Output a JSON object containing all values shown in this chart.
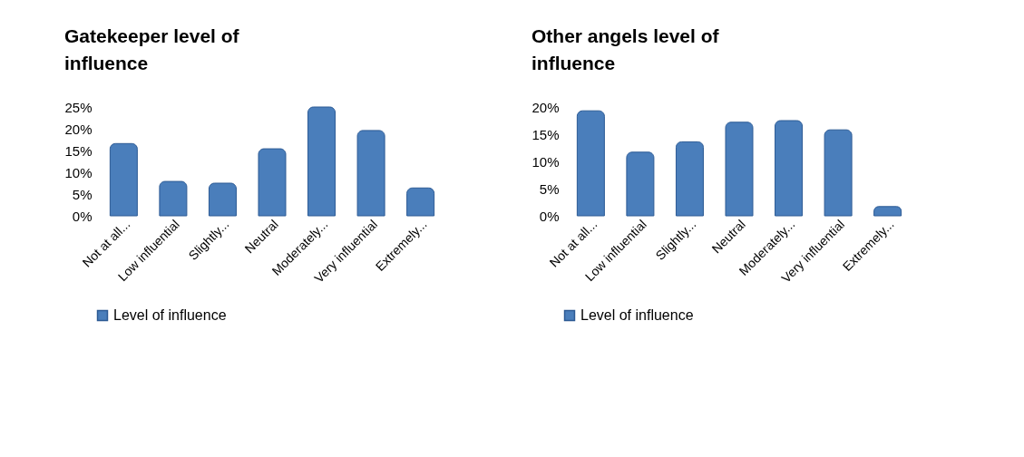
{
  "chart_data": [
    {
      "type": "bar",
      "title": "Gatekeeper level of influence",
      "categories": [
        "Not at all...",
        "Low influential",
        "Slightly...",
        "Neutral",
        "Moderately...",
        "Very influential",
        "Extremely..."
      ],
      "series": [
        {
          "name": "Level of influence",
          "color": "#4a7ebb",
          "values": [
            16.6,
            7.9,
            7.5,
            15.4,
            25,
            19.6,
            6.4
          ]
        }
      ],
      "ylim": [
        0,
        25
      ],
      "yticks": [
        {
          "value": 0,
          "label": "0%"
        },
        {
          "value": 5,
          "label": "5%"
        },
        {
          "value": 10,
          "label": "10%"
        },
        {
          "value": 15,
          "label": "15%"
        },
        {
          "value": 20,
          "label": "20%"
        },
        {
          "value": 25,
          "label": "25%"
        }
      ],
      "grid": false,
      "legend": "bottom"
    },
    {
      "type": "bar",
      "title": "Other angels level of influence",
      "categories": [
        "Not at all...",
        "Low influential",
        "Slightly...",
        "Neutral",
        "Moderately...",
        "Very influential",
        "Extremely..."
      ],
      "series": [
        {
          "name": "Level of influence",
          "color": "#4a7ebb",
          "values": [
            19.3,
            11.7,
            13.6,
            17.2,
            17.5,
            15.8,
            1.7
          ]
        }
      ],
      "ylim": [
        0,
        20
      ],
      "yticks": [
        {
          "value": 0,
          "label": "0%"
        },
        {
          "value": 5,
          "label": "5%"
        },
        {
          "value": 10,
          "label": "10%"
        },
        {
          "value": 15,
          "label": "15%"
        },
        {
          "value": 20,
          "label": "20%"
        }
      ],
      "grid": false,
      "legend": "bottom"
    }
  ]
}
